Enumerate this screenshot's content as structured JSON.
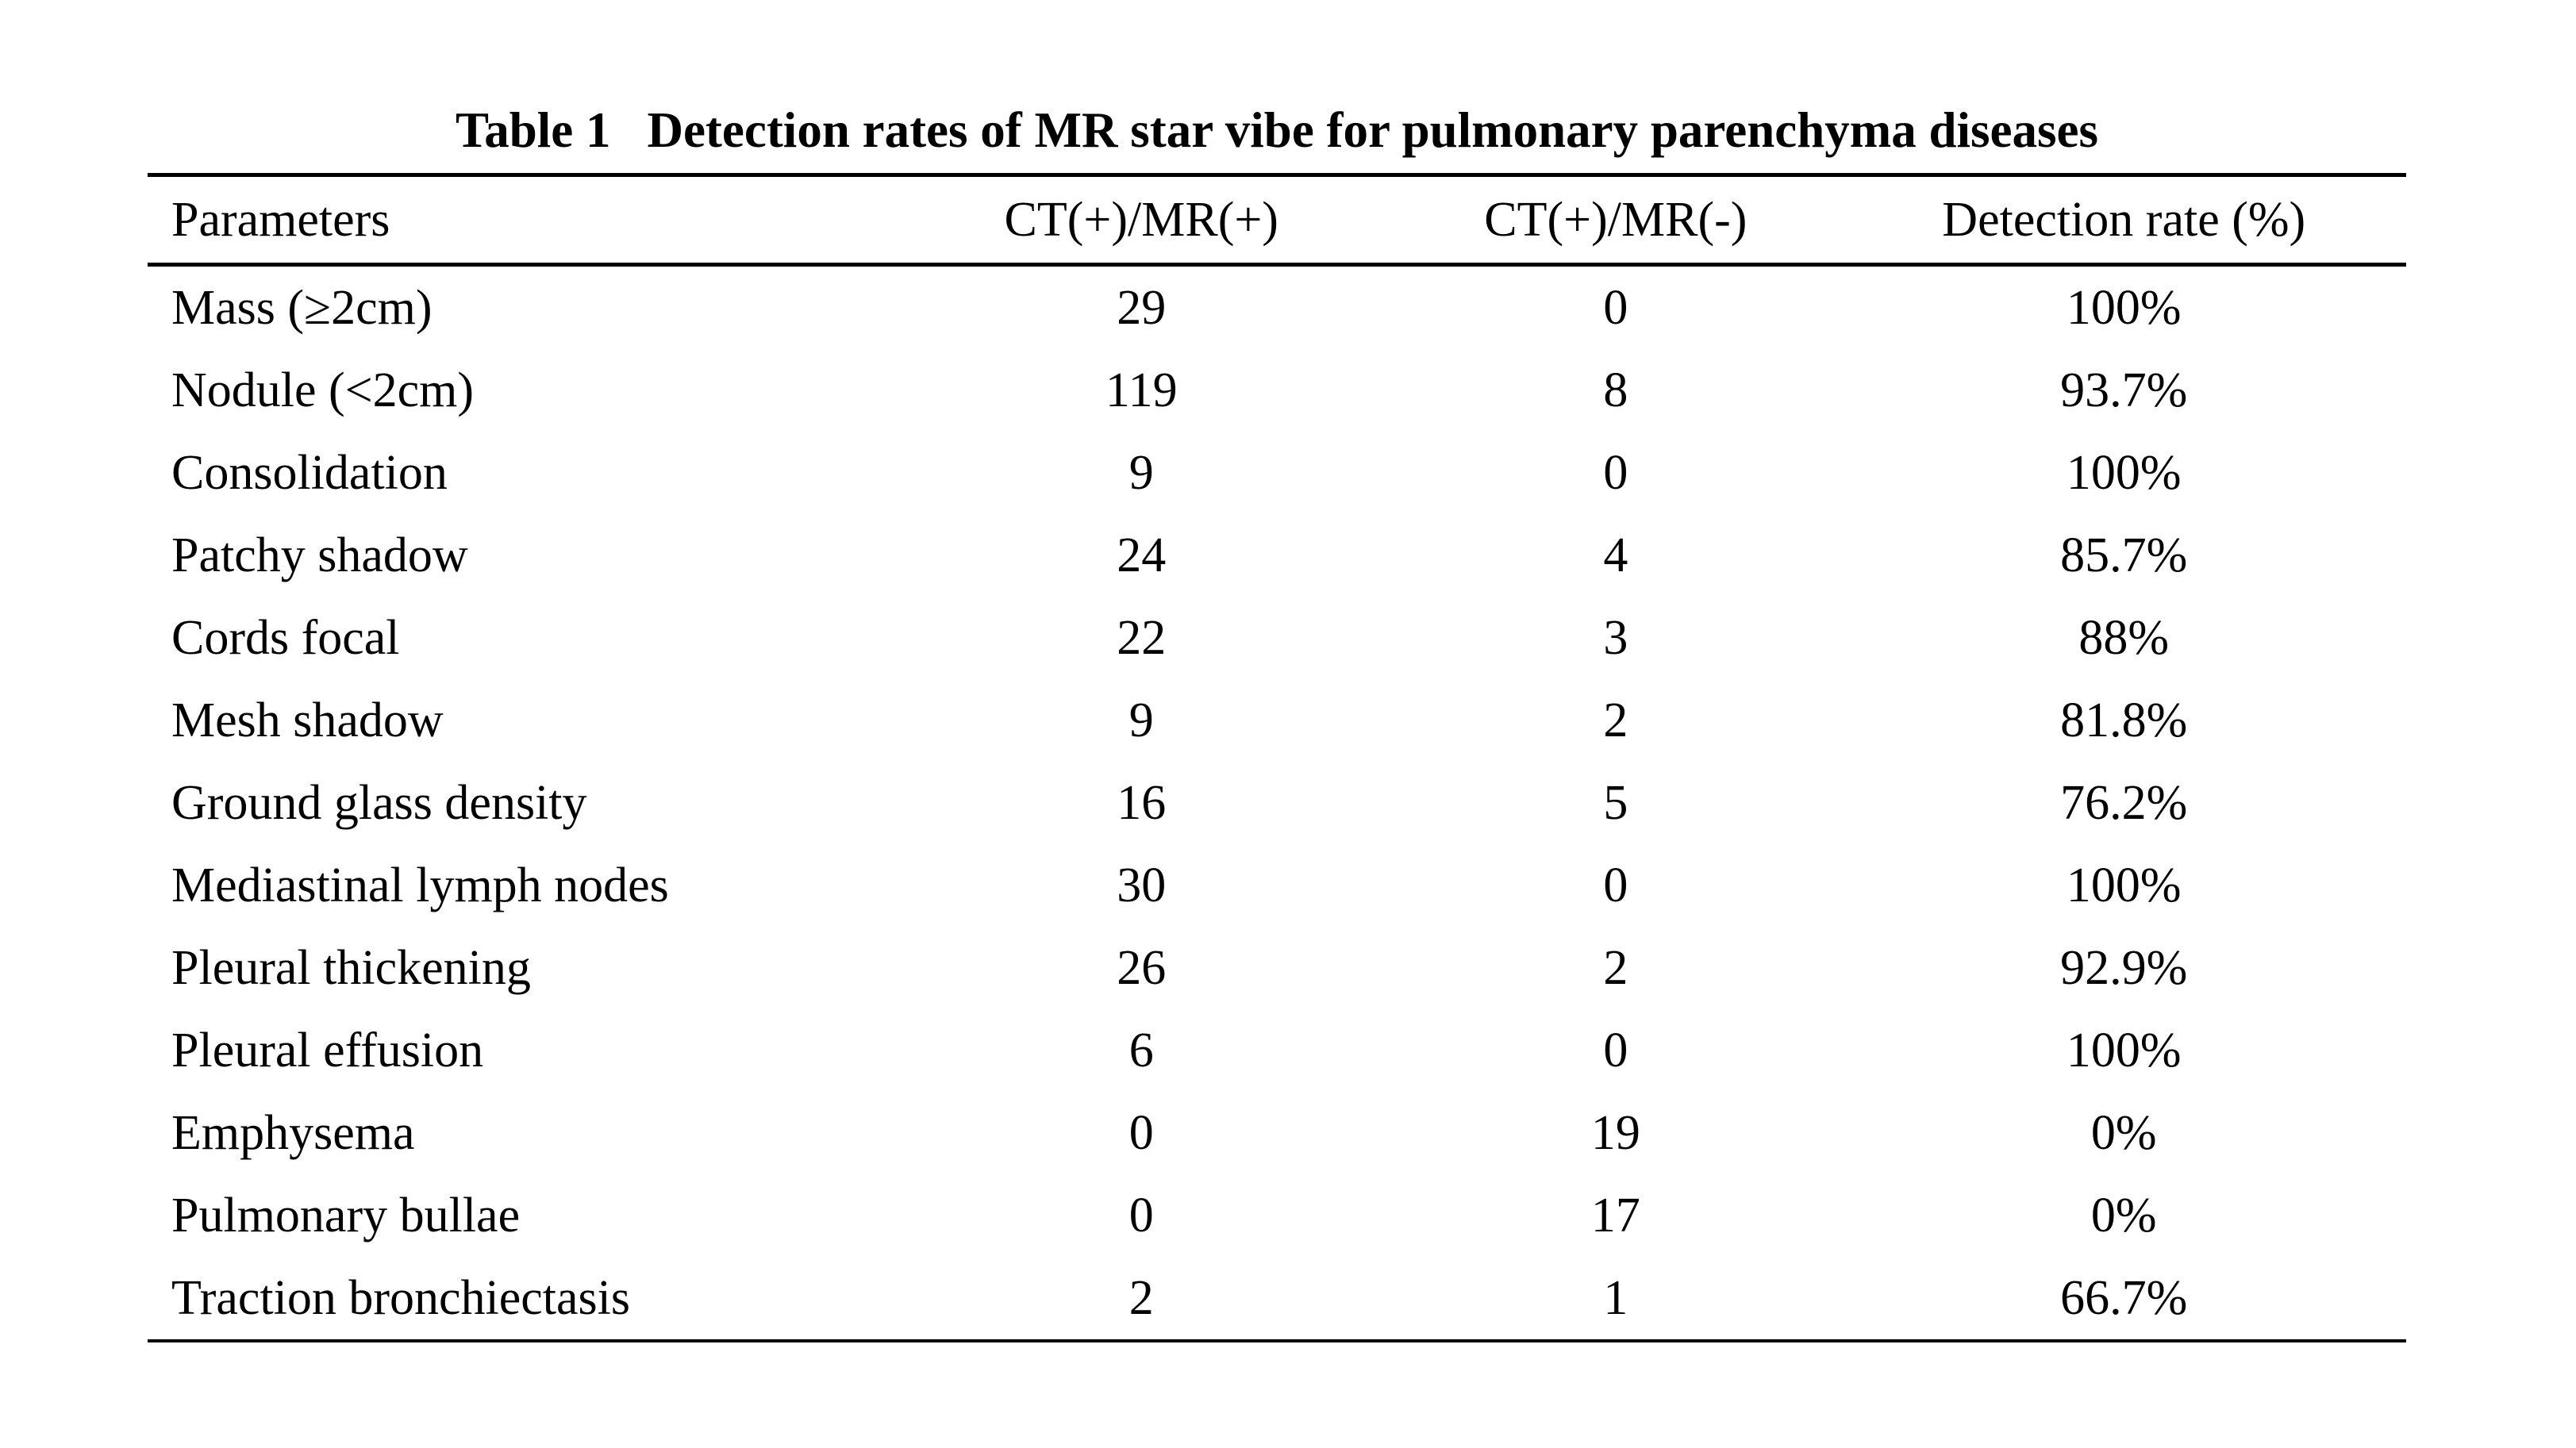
{
  "table": {
    "title_label": "Table 1",
    "title_text": "Detection rates of MR star vibe for pulmonary parenchyma diseases",
    "columns": [
      "Parameters",
      "CT(+)/MR(+)",
      "CT(+)/MR(-)",
      "Detection rate (%)"
    ],
    "rows": [
      {
        "parameter": "Mass (≥2cm)",
        "ct_mr_pos": "29",
        "ct_mr_neg": "0",
        "rate": "100%"
      },
      {
        "parameter": "Nodule (<2cm)",
        "ct_mr_pos": "119",
        "ct_mr_neg": "8",
        "rate": "93.7%"
      },
      {
        "parameter": "Consolidation",
        "ct_mr_pos": "9",
        "ct_mr_neg": "0",
        "rate": "100%"
      },
      {
        "parameter": "Patchy shadow",
        "ct_mr_pos": "24",
        "ct_mr_neg": "4",
        "rate": "85.7%"
      },
      {
        "parameter": "Cords focal",
        "ct_mr_pos": "22",
        "ct_mr_neg": "3",
        "rate": "88%"
      },
      {
        "parameter": "Mesh shadow",
        "ct_mr_pos": "9",
        "ct_mr_neg": "2",
        "rate": "81.8%"
      },
      {
        "parameter": "Ground glass density",
        "ct_mr_pos": "16",
        "ct_mr_neg": "5",
        "rate": "76.2%"
      },
      {
        "parameter": "Mediastinal lymph nodes",
        "ct_mr_pos": "30",
        "ct_mr_neg": "0",
        "rate": "100%"
      },
      {
        "parameter": "Pleural thickening",
        "ct_mr_pos": "26",
        "ct_mr_neg": "2",
        "rate": "92.9%"
      },
      {
        "parameter": "Pleural effusion",
        "ct_mr_pos": "6",
        "ct_mr_neg": "0",
        "rate": "100%"
      },
      {
        "parameter": "Emphysema",
        "ct_mr_pos": "0",
        "ct_mr_neg": "19",
        "rate": "0%"
      },
      {
        "parameter": "Pulmonary bullae",
        "ct_mr_pos": "0",
        "ct_mr_neg": "17",
        "rate": "0%"
      },
      {
        "parameter": "Traction bronchiectasis",
        "ct_mr_pos": "2",
        "ct_mr_neg": "1",
        "rate": "66.7%"
      }
    ]
  }
}
